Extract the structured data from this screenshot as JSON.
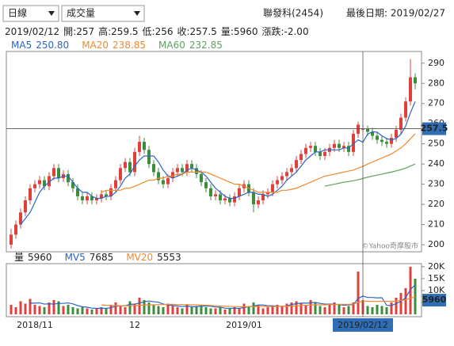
{
  "toolbar": {
    "period": "日線",
    "indicator": "成交量"
  },
  "stock": "聯發科(2454)",
  "last_date": "最後日期: 2019/02/27",
  "watermark": "©Yahoo奇摩股市",
  "chart_data": {
    "type": "candlestick",
    "categories": [
      null,
      null,
      null,
      null,
      null,
      "2018/11",
      null,
      null,
      null,
      null,
      null,
      null,
      null,
      null,
      null,
      null,
      null,
      null,
      null,
      null,
      null,
      null,
      null,
      null,
      null,
      null,
      "12",
      null,
      null,
      null,
      null,
      null,
      null,
      null,
      null,
      null,
      null,
      null,
      null,
      null,
      null,
      null,
      null,
      null,
      null,
      null,
      null,
      null,
      null,
      "2019/01",
      null,
      null,
      null,
      null,
      null,
      null,
      null,
      null,
      null,
      null,
      null,
      null,
      null,
      null,
      null,
      null,
      null,
      null,
      null,
      null,
      null,
      null,
      null,
      null,
      "2019/02/12",
      null,
      null,
      null,
      null,
      null,
      null,
      null,
      null,
      null,
      null,
      null
    ],
    "info": {
      "date": "2019/02/12",
      "fields": [
        {
          "label": "開:",
          "value": 257
        },
        {
          "label": "高:",
          "value": 259.5
        },
        {
          "label": "低:",
          "value": 256
        },
        {
          "label": "收:",
          "value": 257.5
        },
        {
          "label": "量:",
          "value": 5960
        },
        {
          "label": "漲跌:",
          "value": -2,
          "value_label": "-2.00"
        }
      ]
    },
    "open": [
      200,
      205,
      210,
      216,
      222,
      228,
      230,
      232,
      229,
      234,
      238,
      233,
      235,
      231,
      228,
      224,
      222,
      224,
      222,
      223,
      225,
      224,
      228,
      232,
      238,
      241,
      236,
      246,
      251,
      247,
      240,
      236,
      232,
      230,
      233,
      236,
      238,
      236,
      240,
      238,
      235,
      231,
      228,
      224,
      225,
      222,
      223,
      221,
      224,
      228,
      230,
      226,
      220,
      222,
      225,
      226,
      230,
      232,
      234,
      236,
      238,
      242,
      245,
      248,
      249,
      246,
      244,
      246,
      248,
      250,
      248,
      249,
      246,
      255,
      257,
      257.5,
      256,
      254,
      252,
      251,
      250,
      253,
      257,
      263,
      271,
      283
    ],
    "high": [
      208,
      212,
      218,
      224,
      230,
      232,
      234,
      234,
      236,
      240,
      240,
      237,
      237,
      233,
      230,
      226,
      226,
      226,
      225,
      227,
      227,
      230,
      234,
      240,
      243,
      243,
      248,
      254,
      253,
      249,
      242,
      238,
      234,
      235,
      238,
      240,
      240,
      242,
      242,
      240,
      237,
      233,
      230,
      227,
      227,
      225,
      225,
      226,
      230,
      232,
      232,
      228,
      224,
      227,
      228,
      232,
      234,
      236,
      238,
      240,
      244,
      247,
      250,
      251,
      251,
      248,
      248,
      250,
      252,
      252,
      251,
      251,
      257,
      261,
      259.5,
      259,
      258,
      256,
      254,
      253,
      255,
      259,
      265,
      273,
      292,
      285
    ],
    "low": [
      198,
      203,
      208,
      214,
      220,
      226,
      228,
      227,
      227,
      232,
      231,
      231,
      229,
      226,
      222,
      220,
      220,
      220,
      220,
      221,
      222,
      222,
      226,
      230,
      236,
      234,
      234,
      244,
      245,
      238,
      234,
      230,
      228,
      228,
      231,
      234,
      234,
      234,
      236,
      233,
      229,
      226,
      222,
      222,
      220,
      220,
      219,
      219,
      222,
      226,
      224,
      216,
      218,
      220,
      223,
      224,
      228,
      230,
      232,
      234,
      236,
      240,
      243,
      246,
      244,
      242,
      242,
      244,
      246,
      246,
      246,
      244,
      244,
      253,
      256,
      254,
      252,
      250,
      249,
      248,
      248,
      251,
      255,
      261,
      269,
      277
    ],
    "close": [
      205,
      210,
      216,
      222,
      228,
      230,
      232,
      229,
      234,
      238,
      233,
      235,
      231,
      228,
      224,
      222,
      224,
      222,
      223,
      225,
      224,
      228,
      232,
      238,
      241,
      236,
      246,
      251,
      247,
      240,
      236,
      232,
      230,
      233,
      236,
      238,
      236,
      240,
      238,
      235,
      231,
      228,
      224,
      225,
      222,
      223,
      221,
      224,
      228,
      230,
      226,
      220,
      222,
      225,
      226,
      230,
      232,
      234,
      236,
      238,
      242,
      245,
      248,
      249,
      246,
      244,
      246,
      248,
      250,
      248,
      249,
      246,
      255,
      259.5,
      257.5,
      256,
      254,
      252,
      251,
      250,
      253,
      257,
      263,
      271,
      283,
      280
    ],
    "up_color": "#e0403c",
    "down_color": "#3b8c3b",
    "ylim": [
      196.5,
      295.8
    ],
    "yticks": [
      200,
      210,
      220,
      230,
      240,
      250,
      260,
      270,
      280,
      290
    ],
    "lines": [
      {
        "name": "MA5",
        "value": 250.8,
        "value_label": "250.80",
        "color": "#2a64c5",
        "values": [
          null,
          null,
          210,
          213,
          216,
          221,
          226,
          229,
          231,
          233,
          233,
          234,
          234,
          231,
          228,
          226,
          226,
          224,
          223,
          223,
          224,
          224,
          226,
          229,
          233,
          235,
          239,
          242,
          244,
          244,
          244,
          241,
          237,
          234,
          233,
          234,
          235,
          237,
          238,
          237,
          236,
          234,
          231,
          228,
          226,
          224,
          223,
          223,
          224,
          225,
          226,
          226,
          225,
          225,
          224,
          225,
          227,
          229,
          232,
          234,
          236,
          239,
          242,
          244,
          246,
          246,
          247,
          247,
          247,
          247,
          248,
          248,
          250,
          252,
          250.8,
          254.8,
          256,
          255.8,
          254,
          252.6,
          252,
          252.6,
          254.8,
          258.8,
          265.4,
          271
        ]
      },
      {
        "name": "MA20",
        "value": 238.85,
        "color": "#ef8a2e",
        "values": [
          null,
          null,
          null,
          null,
          null,
          null,
          null,
          null,
          null,
          null,
          null,
          null,
          null,
          null,
          null,
          null,
          null,
          null,
          null,
          226,
          227,
          227,
          227,
          227,
          228,
          228,
          229,
          230,
          231,
          232,
          232,
          233,
          233,
          234,
          234,
          235,
          235,
          236,
          236,
          236,
          236,
          236,
          235,
          234,
          233,
          232,
          231,
          230,
          230,
          229,
          228,
          227,
          226,
          226,
          226,
          226,
          226,
          227,
          227,
          227.5,
          228,
          229,
          230,
          231,
          232,
          233,
          234,
          234.5,
          235,
          235.5,
          236,
          236.5,
          237,
          238,
          238.85,
          240,
          241,
          242,
          243,
          244,
          245,
          246.5,
          248,
          250,
          252.5,
          255
        ]
      },
      {
        "name": "MA60",
        "value": 232.85,
        "color": "#5aa35a",
        "values": [
          null,
          null,
          null,
          null,
          null,
          null,
          null,
          null,
          null,
          null,
          null,
          null,
          null,
          null,
          null,
          null,
          null,
          null,
          null,
          null,
          null,
          null,
          null,
          null,
          null,
          null,
          null,
          null,
          null,
          null,
          null,
          null,
          null,
          null,
          null,
          null,
          null,
          null,
          null,
          null,
          null,
          null,
          null,
          null,
          null,
          null,
          null,
          null,
          null,
          null,
          null,
          null,
          null,
          null,
          null,
          null,
          null,
          null,
          null,
          null,
          null,
          null,
          null,
          null,
          null,
          null,
          229,
          229.5,
          230,
          230.5,
          231,
          231.3,
          231.7,
          232.2,
          232.85,
          233.5,
          234,
          234.5,
          235,
          235.5,
          236,
          236.6,
          237.2,
          238,
          239,
          240
        ]
      }
    ],
    "volume": {
      "label": "量",
      "values": [
        4000,
        3000,
        5500,
        4500,
        6500,
        4000,
        3500,
        3000,
        5000,
        6000,
        5500,
        3500,
        4000,
        3000,
        2500,
        3000,
        2500,
        2000,
        2500,
        3000,
        2500,
        4000,
        5000,
        3500,
        3000,
        5500,
        4500,
        7000,
        6000,
        5000,
        4000,
        3500,
        3000,
        4500,
        3500,
        3000,
        2500,
        4000,
        3000,
        3500,
        4000,
        3000,
        2500,
        2500,
        3000,
        2000,
        2500,
        3000,
        2500,
        4500,
        3500,
        5000,
        4000,
        2500,
        3000,
        3500,
        4000,
        3500,
        4500,
        5000,
        5500,
        4500,
        4000,
        6000,
        5000,
        3500,
        3000,
        4500,
        5000,
        4000,
        3000,
        3500,
        5000,
        18000,
        5960,
        3500,
        3000,
        4000,
        3500,
        3000,
        5000,
        7000,
        9000,
        11000,
        20000,
        15000
      ],
      "ylim": [
        0,
        21300
      ],
      "yticks": [
        {
          "value": 5000,
          "label": "5K"
        },
        {
          "value": 10000,
          "label": "10K"
        },
        {
          "value": 15000,
          "label": "15K"
        },
        {
          "value": 20000,
          "label": "20K"
        }
      ],
      "lines": [
        {
          "name": "MV5",
          "value": 7685,
          "color": "#2a64c5",
          "values": [
            null,
            null,
            null,
            null,
            4700,
            4700,
            4800,
            4300,
            4400,
            4300,
            4600,
            4600,
            4800,
            4400,
            3700,
            3200,
            3000,
            2600,
            2500,
            2600,
            2500,
            2800,
            3400,
            3600,
            3600,
            4200,
            4300,
            4700,
            5300,
            5600,
            5300,
            5100,
            4300,
            4000,
            3700,
            3500,
            3300,
            3500,
            3200,
            3200,
            3500,
            3500,
            3400,
            3100,
            3000,
            2600,
            2500,
            2600,
            2500,
            2900,
            3100,
            3500,
            3900,
            3900,
            3600,
            3600,
            3400,
            3300,
            3600,
            4100,
            4500,
            4700,
            4700,
            4800,
            5000,
            4600,
            4300,
            4300,
            4300,
            4100,
            3800,
            4000,
            4100,
            6700,
            7685,
            7100,
            7100,
            6900,
            7000,
            3800,
            3700,
            4500,
            5500,
            7000,
            10400,
            12400
          ]
        },
        {
          "name": "MV20",
          "value": 5553,
          "color": "#ef8a2e",
          "values": [
            null,
            null,
            null,
            null,
            null,
            null,
            null,
            null,
            null,
            null,
            null,
            null,
            null,
            null,
            null,
            null,
            null,
            null,
            null,
            3900,
            3800,
            3700,
            3700,
            3600,
            3600,
            3600,
            3700,
            3800,
            3900,
            4000,
            4000,
            4100,
            4100,
            4200,
            4200,
            4100,
            4100,
            4100,
            4000,
            4000,
            3900,
            3800,
            3700,
            3600,
            3500,
            3400,
            3300,
            3300,
            3200,
            3200,
            3200,
            3300,
            3300,
            3300,
            3300,
            3300,
            3300,
            3400,
            3400,
            3500,
            3600,
            3700,
            3800,
            3900,
            4000,
            4000,
            4000,
            4100,
            4100,
            4200,
            4200,
            4200,
            4300,
            5000,
            5553,
            5500,
            5500,
            5500,
            5500,
            5500,
            5500,
            5600,
            5800,
            6100,
            6800,
            7300
          ]
        }
      ]
    }
  }
}
